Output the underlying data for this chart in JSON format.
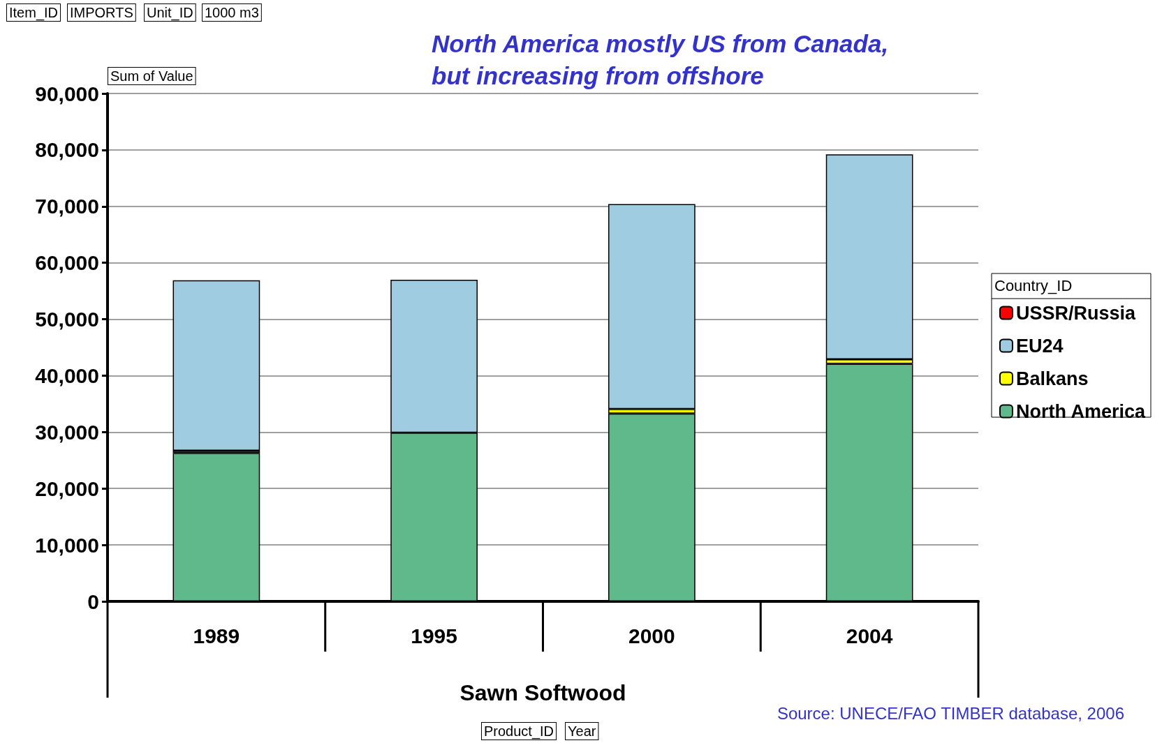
{
  "chart_data": {
    "type": "bar",
    "stacked": true,
    "title": "North America mostly US from Canada,\nbut increasing from offshore",
    "xlabel": "Sawn Softwood",
    "legend_title": "Country_ID",
    "categories": [
      "1989",
      "1995",
      "2000",
      "2004"
    ],
    "series": [
      {
        "name": "North America",
        "color": "#5fb98a",
        "values": [
          26300,
          29900,
          33300,
          42100
        ]
      },
      {
        "name": "Balkans",
        "color": "#ffff00",
        "values": [
          400,
          null,
          800,
          800
        ]
      },
      {
        "name": "EU24",
        "color": "#9fcce0",
        "values": [
          30200,
          27100,
          36300,
          36300
        ]
      },
      {
        "name": "USSR/Russia",
        "color": "#ff0000",
        "values": [
          null,
          null,
          null,
          null
        ]
      }
    ],
    "ylim": [
      0,
      90000
    ],
    "yticks": [
      0,
      {
        "value": 10000,
        "label": "10,000"
      },
      {
        "value": 20000,
        "label": "20,000"
      },
      {
        "value": 30000,
        "label": "30,000"
      },
      {
        "value": 40000,
        "label": "40,000"
      },
      {
        "value": 50000,
        "label": "50,000"
      },
      {
        "value": 60000,
        "label": "60,000"
      },
      {
        "value": 70000,
        "label": "70,000"
      },
      {
        "value": 80000,
        "label": "80,000"
      },
      {
        "value": 90000,
        "label": "90,000"
      }
    ],
    "grid": "y",
    "legend": "right",
    "annotations": [
      "Item_ID",
      "IMPORTS",
      "Unit_ID",
      "1000 m3",
      "Sum of Value",
      "Product_ID",
      "Year",
      "Source: UNECE/FAO TIMBER database, 2006"
    ]
  }
}
